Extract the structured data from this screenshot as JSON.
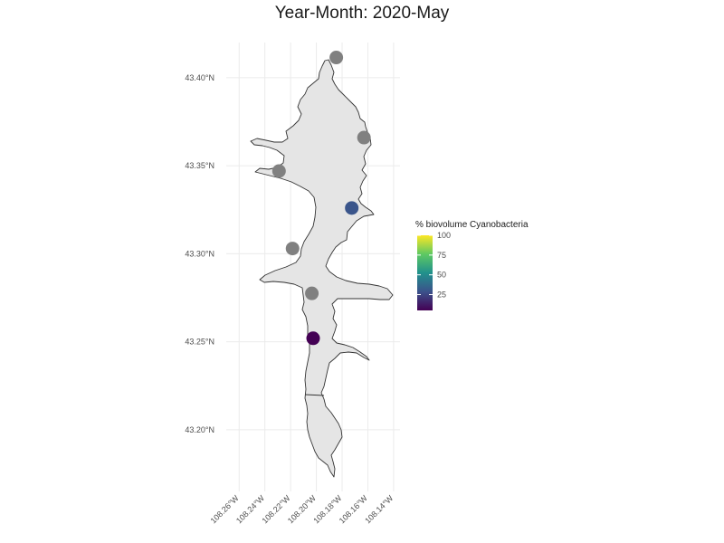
{
  "title": "Year-Month: 2020-May",
  "chart_data": {
    "type": "scatter",
    "map": {
      "xlim": [
        -108.27,
        -108.135
      ],
      "ylim": [
        43.165,
        43.42
      ],
      "y_ticks": [
        {
          "value": 43.4,
          "label": "43.40°N"
        },
        {
          "value": 43.35,
          "label": "43.35°N"
        },
        {
          "value": 43.3,
          "label": "43.30°N"
        },
        {
          "value": 43.25,
          "label": "43.25°N"
        },
        {
          "value": 43.2,
          "label": "43.20°N"
        }
      ],
      "x_ticks": [
        {
          "value": -108.26,
          "label": "108.26°W"
        },
        {
          "value": -108.24,
          "label": "108.24°W"
        },
        {
          "value": -108.22,
          "label": "108.22°W"
        },
        {
          "value": -108.2,
          "label": "108.20°W"
        },
        {
          "value": -108.18,
          "label": "108.18°W"
        },
        {
          "value": -108.16,
          "label": "108.16°W"
        },
        {
          "value": -108.14,
          "label": "108.14°W"
        }
      ],
      "grid": true
    },
    "points": [
      {
        "lon": -108.1845,
        "lat": 43.4115,
        "value": null
      },
      {
        "lon": -108.163,
        "lat": 43.366,
        "value": null
      },
      {
        "lon": -108.229,
        "lat": 43.347,
        "value": null
      },
      {
        "lon": -108.1725,
        "lat": 43.326,
        "value": 30
      },
      {
        "lon": -108.2185,
        "lat": 43.303,
        "value": null
      },
      {
        "lon": -108.2035,
        "lat": 43.2775,
        "value": null
      },
      {
        "lon": -108.2025,
        "lat": 43.252,
        "value": 5
      }
    ],
    "na_color": "#808080",
    "legend": {
      "title": "% biovolume Cyanobacteria",
      "ticks": [
        {
          "value": 100,
          "label": "100"
        },
        {
          "value": 75,
          "label": "75"
        },
        {
          "value": 50,
          "label": "50"
        },
        {
          "value": 25,
          "label": "25"
        }
      ],
      "min": 5,
      "max": 100,
      "colormap": "viridis",
      "placement": "right"
    }
  }
}
